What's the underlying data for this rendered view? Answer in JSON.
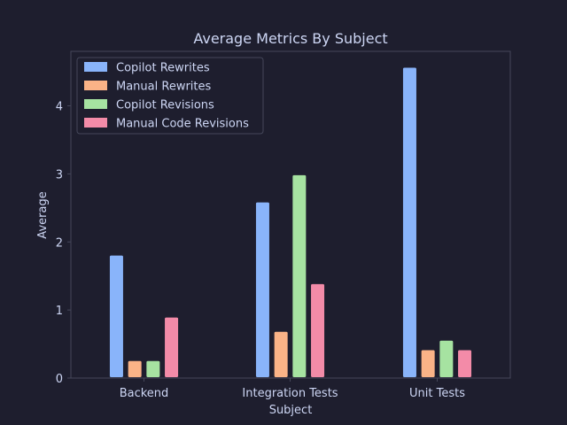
{
  "chart_data": {
    "type": "bar",
    "title": "Average Metrics By Subject",
    "xlabel": "Subject",
    "ylabel": "Average",
    "categories": [
      "Backend",
      "Integration Tests",
      "Unit Tests"
    ],
    "ylim": [
      0,
      4.8
    ],
    "yticks": [
      0,
      1,
      2,
      3,
      4
    ],
    "grid": false,
    "legend_position": "top-left",
    "series": [
      {
        "name": "Copilot Rewrites",
        "values": [
          1.8,
          2.58,
          4.56
        ],
        "color": "#89b4fa"
      },
      {
        "name": "Manual Rewrites",
        "values": [
          0.25,
          0.68,
          0.41
        ],
        "color": "#fab387"
      },
      {
        "name": "Copilot Revisions",
        "values": [
          0.25,
          2.98,
          0.55
        ],
        "color": "#a6e3a1"
      },
      {
        "name": "Manual Code Revisions",
        "values": [
          0.89,
          1.38,
          0.41
        ],
        "color": "#f38ba8"
      }
    ],
    "colors": {
      "background": "#1e1e2e",
      "plot_background": "#1e1e2e",
      "text": "#cdd6f4",
      "axis": "#45475a"
    }
  }
}
